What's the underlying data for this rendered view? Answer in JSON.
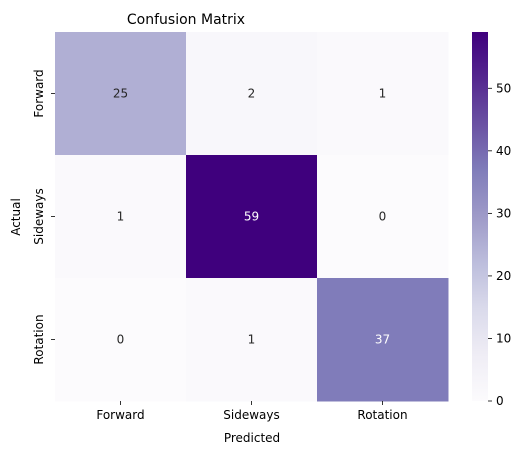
{
  "chart_data": {
    "type": "heatmap",
    "title": "Confusion Matrix",
    "xlabel": "Predicted",
    "ylabel": "Actual",
    "x_categories": [
      "Forward",
      "Sideways",
      "Rotation"
    ],
    "y_categories": [
      "Forward",
      "Sideways",
      "Rotation"
    ],
    "values": [
      [
        25,
        2,
        1
      ],
      [
        1,
        59,
        0
      ],
      [
        0,
        1,
        37
      ]
    ],
    "colorbar": {
      "min": 0,
      "max": 59,
      "ticks": [
        0,
        10,
        20,
        30,
        40,
        50
      ],
      "colormap": "Purples"
    },
    "grid": false,
    "legend": "colorbar-right"
  }
}
